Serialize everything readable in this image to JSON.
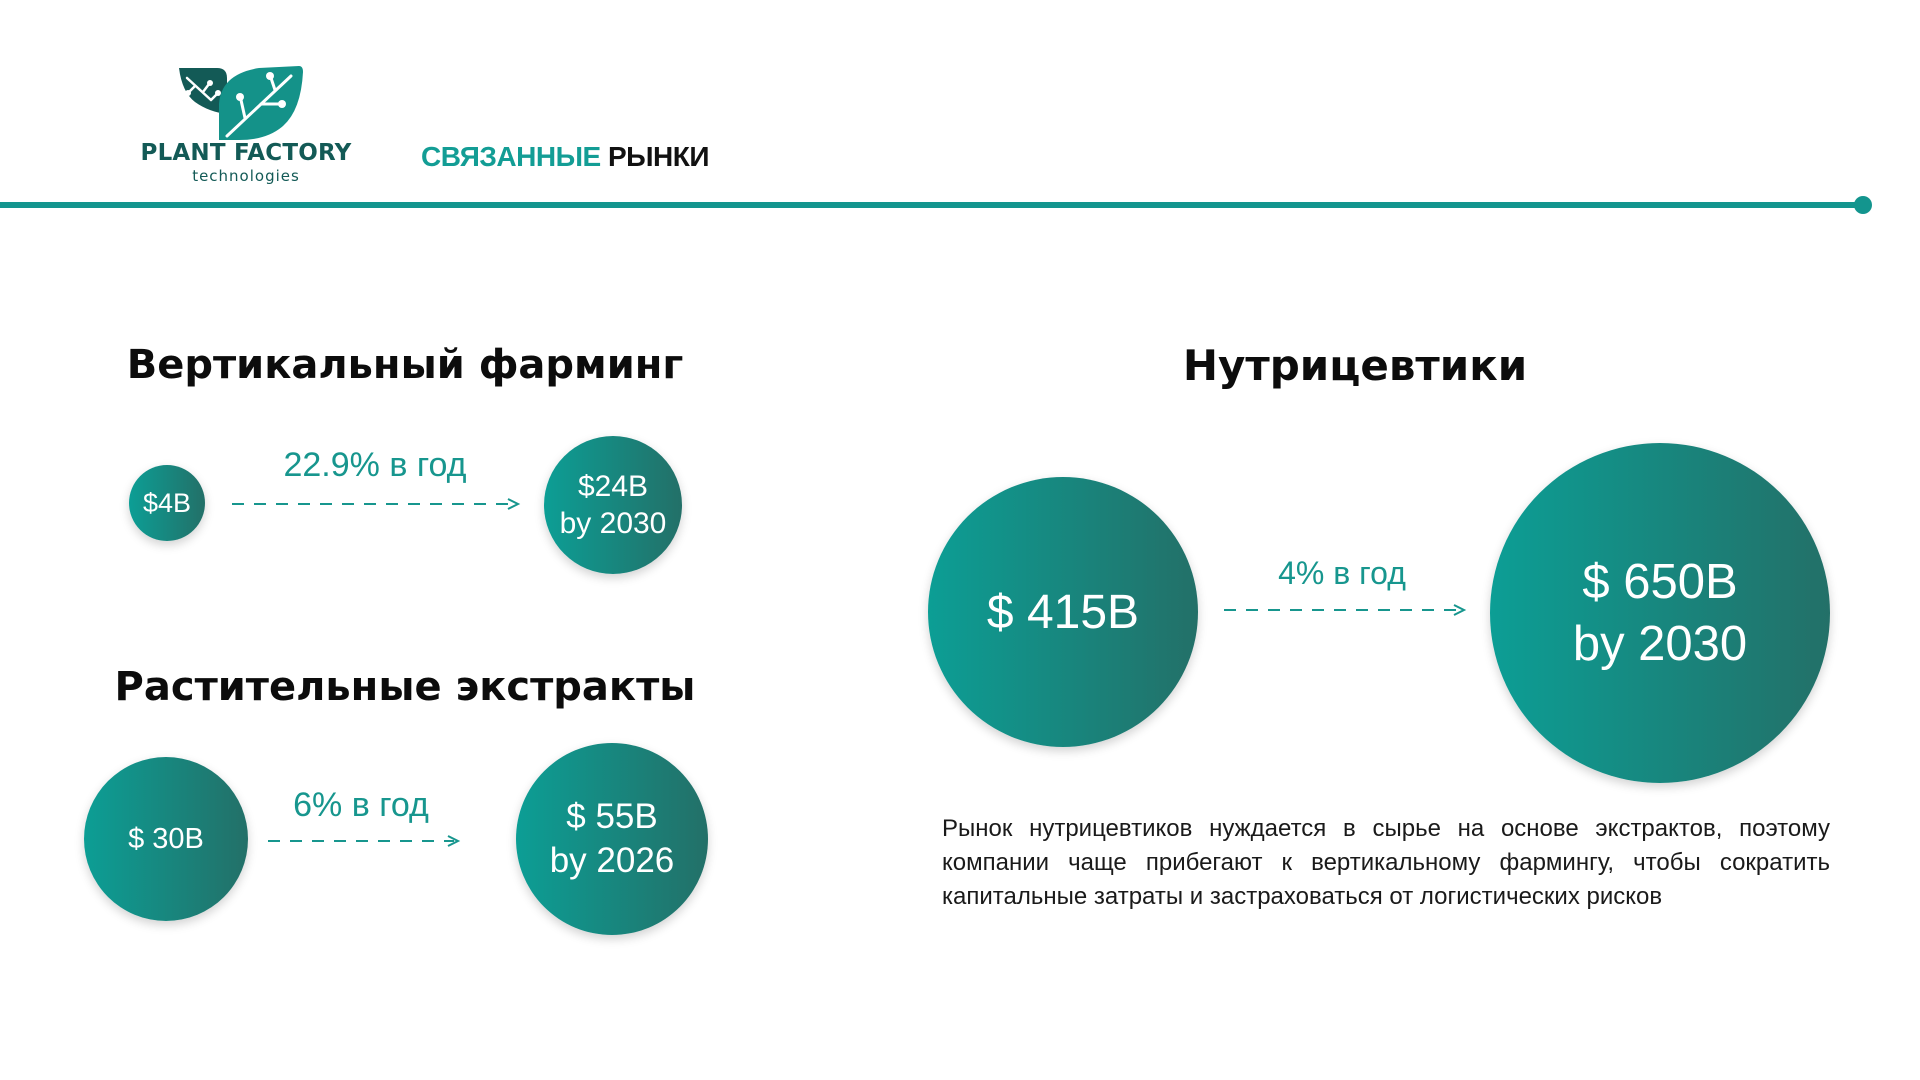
{
  "header": {
    "logo_name": "PLANT FACTORY",
    "logo_sub": "technologies",
    "title_word1": "СВЯЗАННЫЕ",
    "title_word2": "РЫНКИ"
  },
  "colors": {
    "accent": "#13958e",
    "circle_gradient_start": "#0c9e95",
    "circle_gradient_end": "#237068",
    "title_text": "#0c0c0c"
  },
  "vertical_farming": {
    "title": "Вертикальный фарминг",
    "start_value": "$4B",
    "rate": "22.9% в год",
    "end_value": "$24B",
    "end_year": "by 2030"
  },
  "plant_extracts": {
    "title": "Растительные экстракты",
    "start_value": "$ 30B",
    "rate": "6% в год",
    "end_value": "$ 55B",
    "end_year": "by 2026"
  },
  "nutraceuticals": {
    "title": "Нутрицевтики",
    "start_value": "$ 415B",
    "rate": "4% в год",
    "end_value": "$ 650B",
    "end_year": "by 2030",
    "description": "Рынок нутрицевтиков нуждается в сырье на основе экстрактов, поэтому компании чаще прибегают к вертикальному фармингу, чтобы сократить капитальные затраты и застраховаться от логистических рисков"
  }
}
